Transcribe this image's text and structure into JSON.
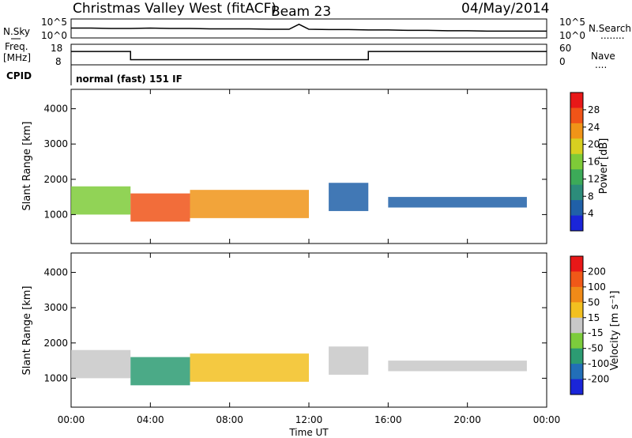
{
  "header": {
    "station": "Christmas Valley West (fitACF)",
    "beam": "Beam 23",
    "date": "04/May/2014",
    "cpid_label": "CPID",
    "cpid_value": "normal (fast) 151 IF"
  },
  "chart_data": [
    {
      "type": "line",
      "panel": "noise",
      "left_label": "N.Sky",
      "right_label": "N.Search",
      "left_ticks": [
        "10^5",
        "10^0"
      ],
      "right_ticks": [
        "10^5",
        "10^0"
      ],
      "right_legend_dots": "........",
      "x": [
        0,
        1,
        2,
        3,
        4,
        5,
        6,
        7,
        8,
        9,
        10,
        11,
        11.5,
        12,
        13,
        14,
        15,
        16,
        17,
        18,
        19,
        20,
        21,
        22,
        23,
        24
      ],
      "series": [
        {
          "values": [
            2.6,
            2.6,
            2.5,
            2.5,
            2.6,
            2.5,
            2.5,
            2.4,
            2.4,
            2.4,
            2.3,
            2.3,
            3.6,
            2.3,
            2.2,
            2.2,
            2.1,
            2.1,
            2.0,
            2.0,
            1.9,
            1.9,
            1.8,
            1.8,
            1.8,
            1.8
          ]
        }
      ]
    },
    {
      "type": "line",
      "panel": "frequency",
      "left_label": "Freq.",
      "left_unit": "[MHz]",
      "right_label": "Nave",
      "right_legend_dots": "....",
      "left_ticks": [
        "18",
        "8"
      ],
      "right_ticks": [
        "60",
        "0"
      ],
      "ylim_left": [
        8,
        18
      ],
      "ylim_right": [
        0,
        60
      ],
      "x": [
        0,
        3,
        3,
        15,
        15,
        24
      ],
      "series": [
        {
          "values": [
            14.5,
            14.5,
            10.5,
            10.5,
            14.5,
            14.5
          ]
        }
      ]
    },
    {
      "type": "heatmap",
      "panel": "power",
      "ylabel": "Slant Range [km]",
      "yticks": [
        "4000",
        "3000",
        "2000",
        "1000"
      ],
      "ylim": [
        180,
        4550
      ],
      "colorbar_label": "Power [dB]",
      "colorbar_ticks": [
        "28",
        "24",
        "20",
        "16",
        "12",
        "8",
        "4"
      ],
      "colors": [
        "#1a25d8",
        "#2060a8",
        "#2c8c7a",
        "#3caa58",
        "#7ecb38",
        "#d8d020",
        "#f09418",
        "#f05418",
        "#e81818"
      ],
      "bands": [
        {
          "x": [
            0,
            3
          ],
          "y": [
            1000,
            1800
          ],
          "level": 0.55
        },
        {
          "x": [
            3,
            6
          ],
          "y": [
            800,
            1600
          ],
          "level": 0.85
        },
        {
          "x": [
            6,
            12
          ],
          "y": [
            900,
            1700
          ],
          "level": 0.75
        },
        {
          "x": [
            13,
            15
          ],
          "y": [
            1100,
            1900
          ],
          "level": 0.15
        },
        {
          "x": [
            16,
            23
          ],
          "y": [
            1200,
            1500
          ],
          "level": 0.1
        }
      ]
    },
    {
      "type": "heatmap",
      "panel": "velocity",
      "ylabel": "Slant Range [km]",
      "yticks": [
        "4000",
        "3000",
        "2000",
        "1000"
      ],
      "ylim": [
        180,
        4550
      ],
      "colorbar_label": "Velocity [m s⁻¹]",
      "colorbar_ticks": [
        "200",
        "100",
        "50",
        "15",
        "-15",
        "-50",
        "-100",
        "-200"
      ],
      "colors": [
        "#1a25d8",
        "#226fb8",
        "#2c9b72",
        "#7ccc3c",
        "#c8c8c8",
        "#f2c020",
        "#f08a18",
        "#f05818",
        "#e81818"
      ],
      "bands": [
        {
          "x": [
            0,
            3
          ],
          "y": [
            1000,
            1800
          ],
          "level": 0.45
        },
        {
          "x": [
            3,
            6
          ],
          "y": [
            800,
            1600
          ],
          "level": 0.3
        },
        {
          "x": [
            6,
            12
          ],
          "y": [
            900,
            1700
          ],
          "level": 0.6
        },
        {
          "x": [
            13,
            15
          ],
          "y": [
            1100,
            1900
          ],
          "level": 0.5
        },
        {
          "x": [
            16,
            23
          ],
          "y": [
            1200,
            1500
          ],
          "level": 0.45
        }
      ]
    }
  ],
  "xaxis": {
    "label": "Time UT",
    "ticks": [
      "00:00",
      "04:00",
      "08:00",
      "12:00",
      "16:00",
      "20:00",
      "00:00"
    ],
    "xlim": [
      0,
      24
    ]
  }
}
